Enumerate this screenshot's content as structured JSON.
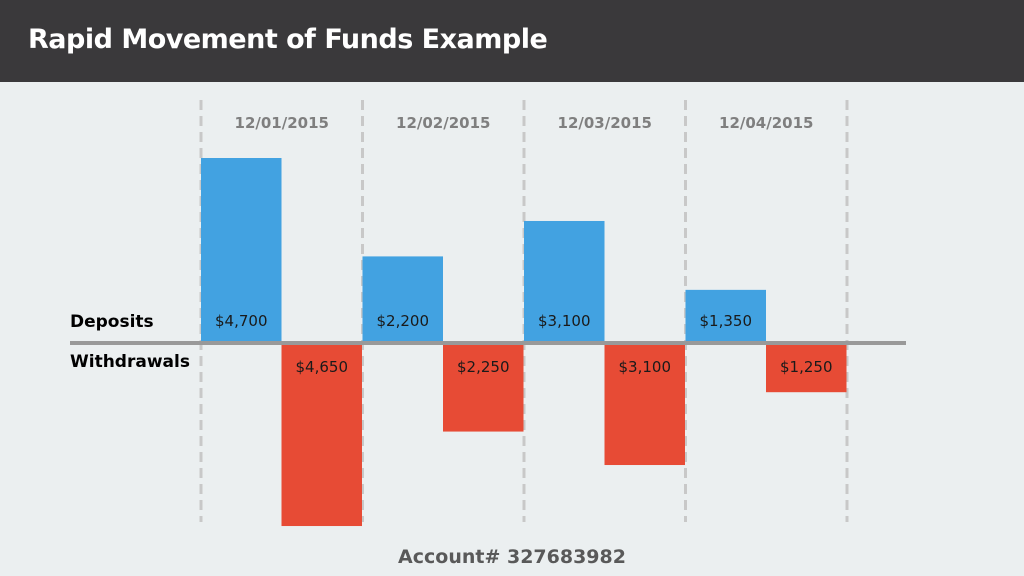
{
  "header": {
    "title": "Rapid Movement of Funds Example"
  },
  "chart_data": {
    "type": "bar",
    "categories": [
      "12/01/2015",
      "12/02/2015",
      "12/03/2015",
      "12/04/2015"
    ],
    "series": [
      {
        "name": "Deposits",
        "values": [
          4700,
          2200,
          3100,
          1350
        ],
        "labels": [
          "$4,700",
          "$2,200",
          "$3,100",
          "$1,350"
        ],
        "color": "#42a2e1",
        "direction": "up"
      },
      {
        "name": "Withdrawals",
        "values": [
          4650,
          2250,
          3100,
          1250
        ],
        "labels": [
          "$4,650",
          "$2,250",
          "$3,100",
          "$1,250"
        ],
        "color": "#e74b35",
        "direction": "down"
      }
    ],
    "grid": true,
    "baseline_color": "#999999",
    "grid_color": "#c8c8c8"
  },
  "footer": {
    "account_label": "Account# 327683982"
  }
}
